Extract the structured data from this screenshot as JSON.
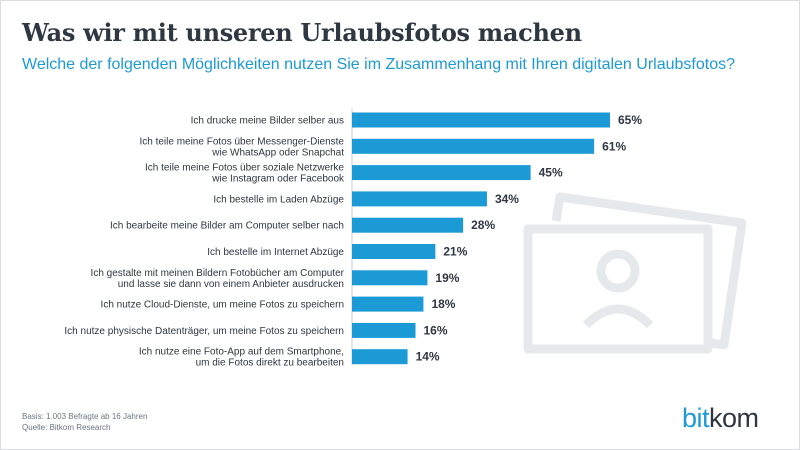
{
  "title": "Was wir mit unseren Urlaubsfotos machen",
  "subtitle": "Welche der folgenden Möglichkeiten nutzen Sie im Zusammenhang mit Ihren digitalen Urlaubsfotos?",
  "footer": {
    "basis": "Basis: 1.003 Befragte ab 16 Jahren",
    "source": "Quelle: Bitkom Research"
  },
  "logo": {
    "part1": "bit",
    "part2": "kom"
  },
  "colors": {
    "bar": "#1c9ad6",
    "title": "#2e3742",
    "subtitle": "#1c9ad6",
    "value_label": "#2e3742",
    "decoration": "#e6e9ec"
  },
  "icons": {
    "background_decoration": "photo-stack-icon"
  },
  "chart_data": {
    "type": "bar",
    "orientation": "horizontal",
    "unit": "%",
    "xlim": [
      0,
      65
    ],
    "grid": false,
    "categories": [
      [
        "Ich drucke meine Bilder selber aus"
      ],
      [
        "Ich teile meine Fotos über Messenger-Dienste",
        "wie WhatsApp oder Snapchat"
      ],
      [
        "Ich teile meine Fotos über soziale Netzwerke",
        "wie Instagram oder Facebook"
      ],
      [
        "Ich bestelle im Laden Abzüge"
      ],
      [
        "Ich bearbeite meine Bilder am Computer selber nach"
      ],
      [
        "Ich bestelle im Internet Abzüge"
      ],
      [
        "Ich gestalte mit meinen Bildern Fotobücher am Computer",
        "und lasse sie dann von einem Anbieter ausdrucken"
      ],
      [
        "Ich nutze Cloud-Dienste, um meine Fotos zu speichern"
      ],
      [
        "Ich nutze physische Datenträger, um meine Fotos zu speichern"
      ],
      [
        "Ich nutze eine Foto-App auf dem Smartphone,",
        "um die Fotos direkt zu bearbeiten"
      ]
    ],
    "values": [
      65,
      61,
      45,
      34,
      28,
      21,
      19,
      18,
      16,
      14
    ],
    "value_labels": [
      "65%",
      "61%",
      "45%",
      "34%",
      "28%",
      "21%",
      "19%",
      "18%",
      "16%",
      "14%"
    ]
  }
}
